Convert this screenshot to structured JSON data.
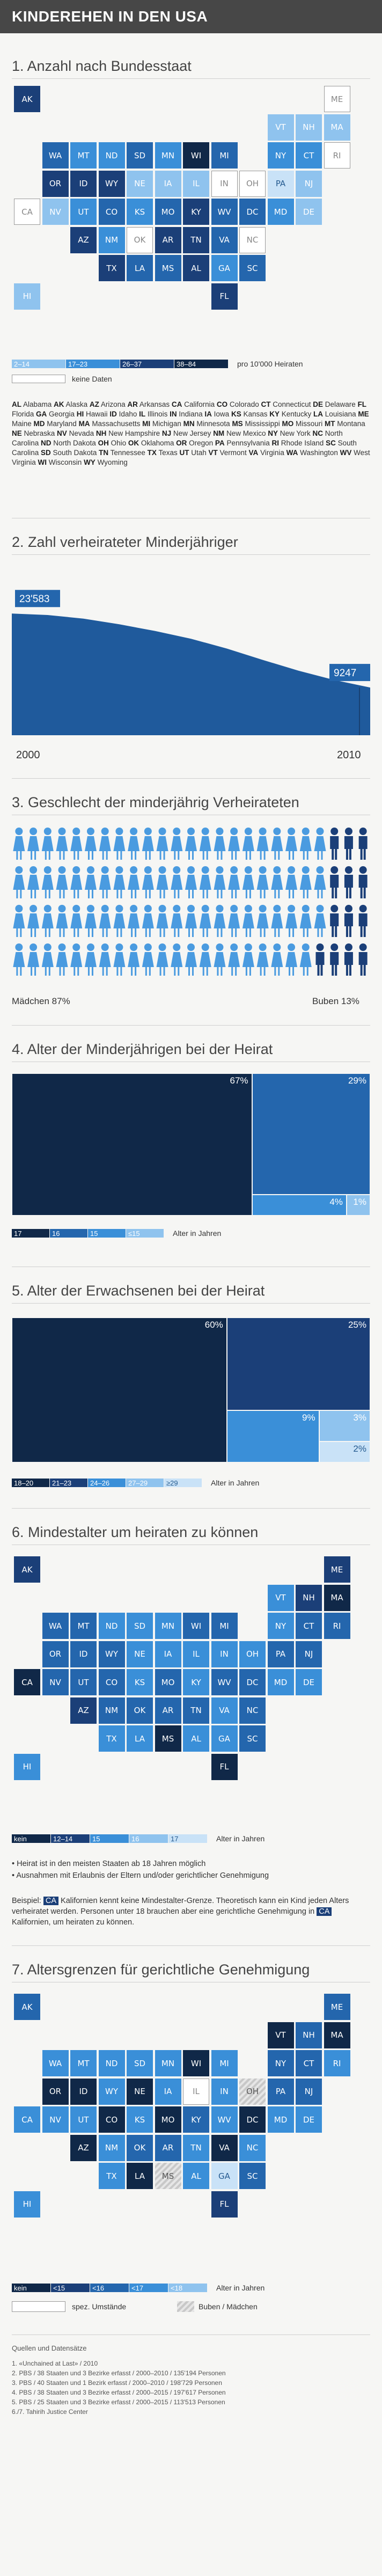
{
  "title": "KINDEREHEN IN DEN USA",
  "colors": {
    "c1": "#c9e2f7",
    "c2": "#8fc3ee",
    "c3": "#3a8fd8",
    "c4": "#2466ad",
    "c5": "#1b3f78",
    "c6": "#102848",
    "none": "#ffffff",
    "grey": "#cccccc",
    "stripe": "#d6d6d6"
  },
  "s1": {
    "title": "1. Anzahl nach Bundesstaat",
    "legend": [
      "2–14",
      "17–23",
      "26–37",
      "38–84"
    ],
    "legend_note": "pro 10'000 Heiraten",
    "nodata": "keine Daten",
    "tiles": [
      {
        "s": "AK",
        "c": 5
      },
      {
        "s": "ME",
        "c": 0
      },
      {
        "s": "VT",
        "c": 2
      },
      {
        "s": "NH",
        "c": 2
      },
      {
        "s": "MA",
        "c": 2
      },
      {
        "s": "WA",
        "c": 4
      },
      {
        "s": "MT",
        "c": 3
      },
      {
        "s": "ND",
        "c": 3
      },
      {
        "s": "SD",
        "c": 4
      },
      {
        "s": "MN",
        "c": 3
      },
      {
        "s": "WI",
        "c": 6
      },
      {
        "s": "MI",
        "c": 4
      },
      {
        "s": "NY",
        "c": 3
      },
      {
        "s": "CT",
        "c": 3
      },
      {
        "s": "RI",
        "c": 0
      },
      {
        "s": "OR",
        "c": 5
      },
      {
        "s": "ID",
        "c": 5
      },
      {
        "s": "WY",
        "c": 5
      },
      {
        "s": "NE",
        "c": 2
      },
      {
        "s": "IA",
        "c": 2
      },
      {
        "s": "IL",
        "c": 2
      },
      {
        "s": "IN",
        "c": 0
      },
      {
        "s": "OH",
        "c": 0
      },
      {
        "s": "PA",
        "c": 1
      },
      {
        "s": "NJ",
        "c": 2
      },
      {
        "s": "CA",
        "c": 0
      },
      {
        "s": "NV",
        "c": 2
      },
      {
        "s": "UT",
        "c": 3
      },
      {
        "s": "CO",
        "c": 4
      },
      {
        "s": "KS",
        "c": 3
      },
      {
        "s": "MO",
        "c": 4
      },
      {
        "s": "KY",
        "c": 5
      },
      {
        "s": "WV",
        "c": 4
      },
      {
        "s": "DC",
        "c": 4
      },
      {
        "s": "MD",
        "c": 3
      },
      {
        "s": "DE",
        "c": 2
      },
      {
        "s": "AZ",
        "c": 5
      },
      {
        "s": "NM",
        "c": 3
      },
      {
        "s": "OK",
        "c": 0
      },
      {
        "s": "AR",
        "c": 5
      },
      {
        "s": "TN",
        "c": 5
      },
      {
        "s": "VA",
        "c": 4
      },
      {
        "s": "NC",
        "c": 0
      },
      {
        "s": "TX",
        "c": 5
      },
      {
        "s": "LA",
        "c": 4
      },
      {
        "s": "MS",
        "c": 4
      },
      {
        "s": "AL",
        "c": 5
      },
      {
        "s": "GA",
        "c": 3
      },
      {
        "s": "SC",
        "c": 4
      },
      {
        "s": "HI",
        "c": 2
      },
      {
        "s": "FL",
        "c": 5
      }
    ],
    "abbr": [
      [
        "AL",
        "Alabama"
      ],
      [
        "AK",
        "Alaska"
      ],
      [
        "AZ",
        "Arizona"
      ],
      [
        "AR",
        "Arkansas"
      ],
      [
        "CA",
        "California"
      ],
      [
        "CO",
        "Colorado"
      ],
      [
        "CT",
        "Connecticut"
      ],
      [
        "DE",
        "Delaware"
      ],
      [
        "FL",
        "Florida"
      ],
      [
        "GA",
        "Georgia"
      ],
      [
        "HI",
        "Hawaii"
      ],
      [
        "ID",
        "Idaho"
      ],
      [
        "IL",
        "Illinois"
      ],
      [
        "IN",
        "Indiana"
      ],
      [
        "IA",
        "Iowa"
      ],
      [
        "KS",
        "Kansas"
      ],
      [
        "KY",
        "Kentucky"
      ],
      [
        "LA",
        "Louisiana"
      ],
      [
        "ME",
        "Maine"
      ],
      [
        "MD",
        "Maryland"
      ],
      [
        "MA",
        "Massachusetts"
      ],
      [
        "MI",
        "Michigan"
      ],
      [
        "MN",
        "Minnesota"
      ],
      [
        "MS",
        "Mississippi"
      ],
      [
        "MO",
        "Missouri"
      ],
      [
        "MT",
        "Montana"
      ],
      [
        "NE",
        "Nebraska"
      ],
      [
        "NV",
        "Nevada"
      ],
      [
        "NH",
        "New Hampshire"
      ],
      [
        "NJ",
        "New Jersey"
      ],
      [
        "NM",
        "New Mexico"
      ],
      [
        "NY",
        "New York"
      ],
      [
        "NC",
        "North Carolina"
      ],
      [
        "ND",
        "North Dakota"
      ],
      [
        "OH",
        "Ohio"
      ],
      [
        "OK",
        "Oklahoma"
      ],
      [
        "OR",
        "Oregon"
      ],
      [
        "PA",
        "Pennsylvania"
      ],
      [
        "RI",
        "Rhode Island"
      ],
      [
        "SC",
        "South Carolina"
      ],
      [
        "SD",
        "South Dakota"
      ],
      [
        "TN",
        "Tennessee"
      ],
      [
        "TX",
        "Texas"
      ],
      [
        "UT",
        "Utah"
      ],
      [
        "VT",
        "Vermont"
      ],
      [
        "VA",
        "Virginia"
      ],
      [
        "WA",
        "Washington"
      ],
      [
        "WV",
        "West Virginia"
      ],
      [
        "WI",
        "Wisconsin"
      ],
      [
        "WY",
        "Wyoming"
      ]
    ]
  },
  "chart_data": [
    {
      "type": "area",
      "title": "2. Zahl verheirateter Minderjähriger",
      "x": [
        2000,
        2001,
        2002,
        2003,
        2004,
        2005,
        2006,
        2007,
        2008,
        2009,
        2010
      ],
      "values": [
        23583,
        23300,
        22600,
        21500,
        20200,
        18700,
        16800,
        14600,
        12500,
        10700,
        9247
      ],
      "first_label": "23'583",
      "last_label": "9247",
      "xlabels": [
        "2000",
        "2010"
      ]
    },
    {
      "type": "bar",
      "title": "3. Geschlecht der minderjährig Verheirateten",
      "categories": [
        "Mädchen",
        "Buben"
      ],
      "values": [
        87,
        13
      ],
      "labels": [
        "Mädchen 87%",
        "Buben 13%"
      ]
    },
    {
      "type": "bar",
      "title": "4. Alter der Minderjährigen bei der Heirat",
      "categories": [
        "17",
        "16",
        "15",
        "≤15"
      ],
      "values": [
        67,
        29,
        4,
        1
      ],
      "labels": [
        "67%",
        "29%",
        "4%",
        "1%"
      ],
      "axis_note": "Alter in Jahren"
    },
    {
      "type": "bar",
      "title": "5. Alter der Erwachsenen bei der Heirat",
      "categories": [
        "18–20",
        "21–23",
        "24–26",
        "27–29",
        "≥29"
      ],
      "values": [
        60,
        25,
        9,
        3,
        2
      ],
      "labels": [
        "60%",
        "25%",
        "9%",
        "3%",
        "2%"
      ],
      "axis_note": "Alter in Jahren"
    }
  ],
  "s6": {
    "title": "6. Mindestalter um heiraten zu können",
    "legend": [
      "kein",
      "12–14",
      "15",
      "16",
      "17"
    ],
    "legend_note": "Alter in Jahren",
    "bullets": [
      "Heirat ist in den meisten Staaten ab 18 Jahren möglich",
      "Ausnahmen mit Erlaubnis der Eltern und/oder gerichtlicher Genehmigung"
    ],
    "example_pre": "Beispiel:",
    "example_tag": "CA",
    "example_text": "Kalifornien kennt keine Mindestalter-Grenze. Theoretisch kann ein Kind jeden Alters verheiratet werden. Personen unter 18 brauchen aber eine gerichtliche Genehmigung in",
    "example_tag2": "CA",
    "example_end": "Kalifornien, um heiraten zu können.",
    "tiles": [
      {
        "s": "AK",
        "c": 5
      },
      {
        "s": "ME",
        "c": 5
      },
      {
        "s": "VT",
        "c": 3
      },
      {
        "s": "NH",
        "c": 5
      },
      {
        "s": "MA",
        "c": 6
      },
      {
        "s": "WA",
        "c": 4
      },
      {
        "s": "MT",
        "c": 4
      },
      {
        "s": "ND",
        "c": 3
      },
      {
        "s": "SD",
        "c": 3
      },
      {
        "s": "MN",
        "c": 3
      },
      {
        "s": "WI",
        "c": 4
      },
      {
        "s": "MI",
        "c": 4
      },
      {
        "s": "NY",
        "c": 3
      },
      {
        "s": "CT",
        "c": 4
      },
      {
        "s": "RI",
        "c": 4
      },
      {
        "s": "OR",
        "c": 4
      },
      {
        "s": "ID",
        "c": 4
      },
      {
        "s": "WY",
        "c": 4
      },
      {
        "s": "NE",
        "c": 3
      },
      {
        "s": "IA",
        "c": 3
      },
      {
        "s": "IL",
        "c": 3
      },
      {
        "s": "IN",
        "c": 3
      },
      {
        "s": "OH",
        "c": 3
      },
      {
        "s": "PA",
        "c": 4
      },
      {
        "s": "NJ",
        "c": 4
      },
      {
        "s": "CA",
        "c": 6
      },
      {
        "s": "NV",
        "c": 4
      },
      {
        "s": "UT",
        "c": 4
      },
      {
        "s": "CO",
        "c": 4
      },
      {
        "s": "KS",
        "c": 3
      },
      {
        "s": "MO",
        "c": 4
      },
      {
        "s": "KY",
        "c": 3
      },
      {
        "s": "WV",
        "c": 4
      },
      {
        "s": "DC",
        "c": 4
      },
      {
        "s": "MD",
        "c": 3
      },
      {
        "s": "DE",
        "c": 3
      },
      {
        "s": "AZ",
        "c": 5
      },
      {
        "s": "NM",
        "c": 4
      },
      {
        "s": "OK",
        "c": 4
      },
      {
        "s": "AR",
        "c": 4
      },
      {
        "s": "TN",
        "c": 4
      },
      {
        "s": "VA",
        "c": 3
      },
      {
        "s": "NC",
        "c": 4
      },
      {
        "s": "TX",
        "c": 3
      },
      {
        "s": "LA",
        "c": 3
      },
      {
        "s": "MS",
        "c": 6
      },
      {
        "s": "AL",
        "c": 3
      },
      {
        "s": "GA",
        "c": 3
      },
      {
        "s": "SC",
        "c": 4
      },
      {
        "s": "HI",
        "c": 3
      },
      {
        "s": "FL",
        "c": 6
      }
    ]
  },
  "s7": {
    "title": "7. Altersgrenzen für gerichtliche Genehmigung",
    "legend": [
      "kein",
      "<15",
      "<16",
      "<17",
      "<18"
    ],
    "legend_note": "Alter in Jahren",
    "legend2": [
      "spez. Umstände",
      "Buben / Mädchen"
    ],
    "tiles": [
      {
        "s": "AK",
        "c": 4
      },
      {
        "s": "ME",
        "c": 4
      },
      {
        "s": "VT",
        "c": 6
      },
      {
        "s": "NH",
        "c": 4
      },
      {
        "s": "MA",
        "c": 6
      },
      {
        "s": "WA",
        "c": 3
      },
      {
        "s": "MT",
        "c": 3
      },
      {
        "s": "ND",
        "c": 3
      },
      {
        "s": "SD",
        "c": 3
      },
      {
        "s": "MN",
        "c": 3
      },
      {
        "s": "WI",
        "c": 6
      },
      {
        "s": "MI",
        "c": 3
      },
      {
        "s": "NY",
        "c": 4
      },
      {
        "s": "CT",
        "c": 4
      },
      {
        "s": "RI",
        "c": 3
      },
      {
        "s": "OR",
        "c": 6
      },
      {
        "s": "ID",
        "c": 6
      },
      {
        "s": "WY",
        "c": 3
      },
      {
        "s": "NE",
        "c": 6
      },
      {
        "s": "IA",
        "c": 3
      },
      {
        "s": "IL",
        "c": 0
      },
      {
        "s": "IN",
        "c": 3
      },
      {
        "s": "OH",
        "c": 7
      },
      {
        "s": "PA",
        "c": 4
      },
      {
        "s": "NJ",
        "c": 4
      },
      {
        "s": "CA",
        "c": 3
      },
      {
        "s": "NV",
        "c": 3
      },
      {
        "s": "UT",
        "c": 3
      },
      {
        "s": "CO",
        "c": 6
      },
      {
        "s": "KS",
        "c": 3
      },
      {
        "s": "MO",
        "c": 6
      },
      {
        "s": "KY",
        "c": 4
      },
      {
        "s": "WV",
        "c": 3
      },
      {
        "s": "DC",
        "c": 6
      },
      {
        "s": "MD",
        "c": 3
      },
      {
        "s": "DE",
        "c": 3
      },
      {
        "s": "AZ",
        "c": 6
      },
      {
        "s": "NM",
        "c": 3
      },
      {
        "s": "OK",
        "c": 4
      },
      {
        "s": "AR",
        "c": 4
      },
      {
        "s": "TN",
        "c": 3
      },
      {
        "s": "VA",
        "c": 6
      },
      {
        "s": "NC",
        "c": 3
      },
      {
        "s": "TX",
        "c": 3
      },
      {
        "s": "LA",
        "c": 6
      },
      {
        "s": "MS",
        "c": 7
      },
      {
        "s": "AL",
        "c": 3
      },
      {
        "s": "GA",
        "c": 1
      },
      {
        "s": "SC",
        "c": 4
      },
      {
        "s": "HI",
        "c": 3
      },
      {
        "s": "FL",
        "c": 5
      }
    ]
  },
  "sources": {
    "heading": "Quellen und Datensätze",
    "items": [
      "1. «Unchained at Last» / 2010",
      "2. PBS / 38 Staaten und 3 Bezirke erfasst / 2000–2010 / 135'194 Personen",
      "3. PBS / 40 Staaten und 1 Bezirk erfasst / 2000–2010 / 198'729 Personen",
      "4. PBS / 38 Staaten und 3 Bezirke erfasst / 2000–2015 / 197'617 Personen",
      "5. PBS / 25 Staaten und 3 Bezirke erfasst / 2000–2015 / 113'513 Personen",
      "6./7. Tahirih Justice Center"
    ]
  }
}
